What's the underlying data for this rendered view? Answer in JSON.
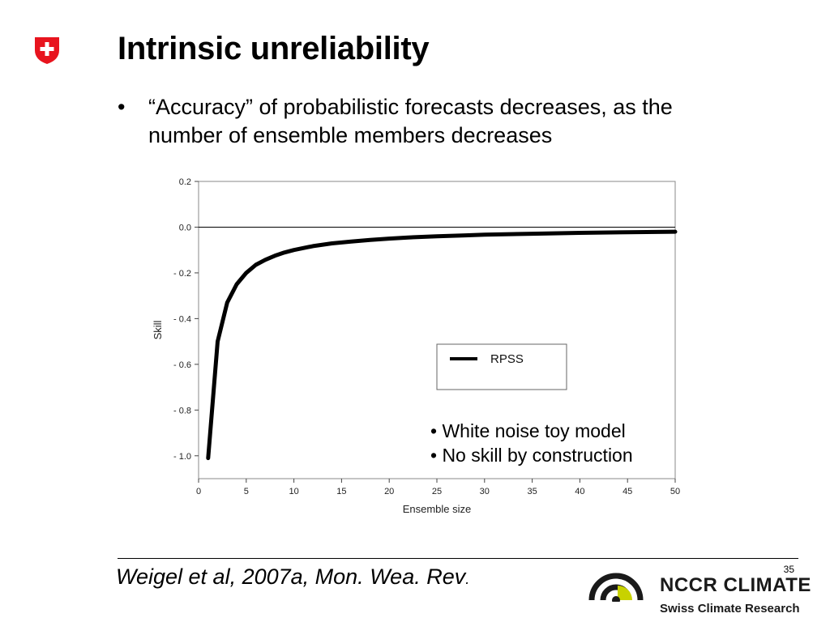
{
  "slide": {
    "title": "Intrinsic unreliability",
    "bullet_mark": "•",
    "bullet_text": "“Accuracy” of probabilistic forecasts decreases, as the number of ensemble members decreases",
    "citation": "Weigel et al, 2007a, Mon. Wea. Rev",
    "citation_end": ".",
    "page_number": "35",
    "org_name": "NCCR CLIMATE",
    "org_subtitle": "Swiss Climate Research",
    "logo_red": "#e8141e",
    "logo_accent": "#c8d200"
  },
  "chart_data": {
    "type": "line",
    "xlabel": "Ensemble size",
    "ylabel": "Skill",
    "xlim": [
      0,
      50
    ],
    "ylim": [
      -1.1,
      0.2
    ],
    "xticks": [
      0,
      5,
      10,
      15,
      20,
      25,
      30,
      35,
      40,
      45,
      50
    ],
    "yticks": [
      0.2,
      0.0,
      -0.2,
      -0.4,
      -0.6,
      -0.8,
      -1.0
    ],
    "ytick_labels": [
      "0.2",
      "0.0",
      "- 0.2",
      "- 0.4",
      "- 0.6",
      "- 0.8",
      "- 1.0"
    ],
    "reference_line_y": 0.0,
    "legend_position": "lower-right",
    "series": [
      {
        "name": "RPSS",
        "color": "#000000",
        "x": [
          1,
          2,
          3,
          4,
          5,
          6,
          7,
          8,
          9,
          10,
          12,
          14,
          16,
          18,
          20,
          22,
          25,
          28,
          30,
          35,
          40,
          45,
          50
        ],
        "y": [
          -1.01,
          -0.5,
          -0.33,
          -0.25,
          -0.2,
          -0.165,
          -0.143,
          -0.125,
          -0.111,
          -0.1,
          -0.083,
          -0.071,
          -0.063,
          -0.056,
          -0.05,
          -0.045,
          -0.04,
          -0.036,
          -0.033,
          -0.029,
          -0.025,
          -0.022,
          -0.02
        ]
      }
    ],
    "annotations": [
      "• White noise toy model",
      "• No skill by construction"
    ]
  }
}
